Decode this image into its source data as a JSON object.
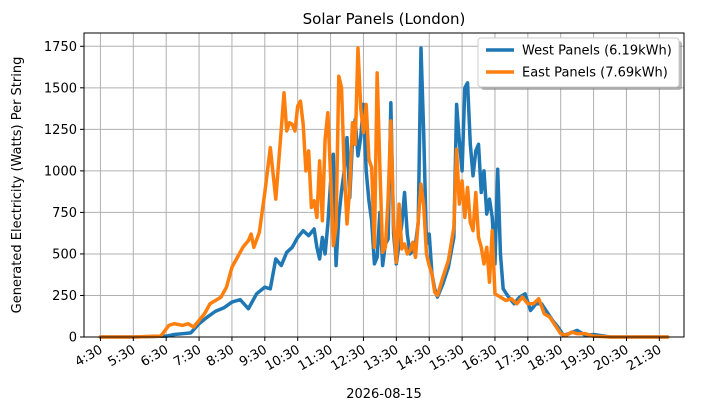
{
  "chart_data": {
    "type": "line",
    "title": "Solar Panels (London)",
    "xlabel": "2026-08-15",
    "ylabel": "Generated Electricity (Watts) Per String",
    "ylim": [
      0,
      1830
    ],
    "xlim": [
      "04:00",
      "22:15"
    ],
    "grid": true,
    "legend_position": "top-right",
    "x_ticks": [
      "4:30",
      "5:30",
      "6:30",
      "7:30",
      "8:30",
      "9:30",
      "10:30",
      "11:30",
      "12:30",
      "13:30",
      "14:30",
      "15:30",
      "16:30",
      "17:30",
      "18:30",
      "19:30",
      "20:30",
      "21:30"
    ],
    "y_ticks": [
      0,
      250,
      500,
      750,
      1000,
      1250,
      1500,
      1750
    ],
    "series": [
      {
        "name": "West Panels (6.19kWh)",
        "color": "#1f77b4",
        "points": [
          [
            "04:30",
            0
          ],
          [
            "05:30",
            0
          ],
          [
            "06:30",
            5
          ],
          [
            "06:45",
            15
          ],
          [
            "07:00",
            20
          ],
          [
            "07:15",
            25
          ],
          [
            "07:30",
            80
          ],
          [
            "07:45",
            120
          ],
          [
            "08:00",
            155
          ],
          [
            "08:15",
            175
          ],
          [
            "08:30",
            210
          ],
          [
            "08:45",
            225
          ],
          [
            "09:00",
            170
          ],
          [
            "09:15",
            260
          ],
          [
            "09:30",
            300
          ],
          [
            "09:40",
            290
          ],
          [
            "09:50",
            470
          ],
          [
            "10:00",
            430
          ],
          [
            "10:10",
            510
          ],
          [
            "10:20",
            540
          ],
          [
            "10:30",
            600
          ],
          [
            "10:40",
            640
          ],
          [
            "10:50",
            610
          ],
          [
            "11:00",
            650
          ],
          [
            "11:05",
            540
          ],
          [
            "11:10",
            470
          ],
          [
            "11:15",
            600
          ],
          [
            "11:20",
            500
          ],
          [
            "11:25",
            680
          ],
          [
            "11:30",
            930
          ],
          [
            "11:35",
            1100
          ],
          [
            "11:40",
            430
          ],
          [
            "11:45",
            720
          ],
          [
            "11:50",
            880
          ],
          [
            "11:55",
            1000
          ],
          [
            "12:00",
            1200
          ],
          [
            "12:05",
            840
          ],
          [
            "12:10",
            1180
          ],
          [
            "12:15",
            1310
          ],
          [
            "12:20",
            1090
          ],
          [
            "12:25",
            1200
          ],
          [
            "12:30",
            1400
          ],
          [
            "12:35",
            1000
          ],
          [
            "12:40",
            820
          ],
          [
            "12:45",
            700
          ],
          [
            "12:50",
            440
          ],
          [
            "12:55",
            480
          ],
          [
            "13:00",
            750
          ],
          [
            "13:05",
            430
          ],
          [
            "13:10",
            560
          ],
          [
            "13:15",
            590
          ],
          [
            "13:20",
            1410
          ],
          [
            "13:25",
            620
          ],
          [
            "13:30",
            440
          ],
          [
            "13:35",
            560
          ],
          [
            "13:40",
            680
          ],
          [
            "13:45",
            870
          ],
          [
            "13:50",
            620
          ],
          [
            "13:55",
            500
          ],
          [
            "14:00",
            520
          ],
          [
            "14:05",
            560
          ],
          [
            "14:10",
            690
          ],
          [
            "14:15",
            1740
          ],
          [
            "14:20",
            1220
          ],
          [
            "14:25",
            560
          ],
          [
            "14:30",
            620
          ],
          [
            "14:35",
            380
          ],
          [
            "14:40",
            290
          ],
          [
            "14:45",
            240
          ],
          [
            "14:55",
            320
          ],
          [
            "15:05",
            420
          ],
          [
            "15:15",
            600
          ],
          [
            "15:20",
            1400
          ],
          [
            "15:25",
            1180
          ],
          [
            "15:30",
            1000
          ],
          [
            "15:35",
            1500
          ],
          [
            "15:40",
            1530
          ],
          [
            "15:45",
            1160
          ],
          [
            "15:50",
            970
          ],
          [
            "15:55",
            1120
          ],
          [
            "16:00",
            1160
          ],
          [
            "16:05",
            870
          ],
          [
            "16:10",
            1000
          ],
          [
            "16:15",
            740
          ],
          [
            "16:20",
            830
          ],
          [
            "16:25",
            720
          ],
          [
            "16:30",
            440
          ],
          [
            "16:35",
            1010
          ],
          [
            "16:40",
            500
          ],
          [
            "16:45",
            290
          ],
          [
            "16:55",
            240
          ],
          [
            "17:05",
            200
          ],
          [
            "17:15",
            240
          ],
          [
            "17:25",
            260
          ],
          [
            "17:35",
            160
          ],
          [
            "17:45",
            200
          ],
          [
            "17:55",
            200
          ],
          [
            "18:05",
            150
          ],
          [
            "18:15",
            100
          ],
          [
            "18:25",
            60
          ],
          [
            "18:35",
            10
          ],
          [
            "18:45",
            20
          ],
          [
            "19:00",
            40
          ],
          [
            "19:15",
            10
          ],
          [
            "19:30",
            15
          ],
          [
            "20:00",
            0
          ],
          [
            "20:30",
            0
          ],
          [
            "21:00",
            0
          ],
          [
            "21:30",
            0
          ],
          [
            "21:45",
            0
          ]
        ]
      },
      {
        "name": "East Panels (7.69kWh)",
        "color": "#ff7f0e",
        "points": [
          [
            "04:30",
            0
          ],
          [
            "05:30",
            0
          ],
          [
            "06:20",
            5
          ],
          [
            "06:35",
            70
          ],
          [
            "06:45",
            80
          ],
          [
            "07:00",
            70
          ],
          [
            "07:10",
            80
          ],
          [
            "07:20",
            60
          ],
          [
            "07:30",
            100
          ],
          [
            "07:40",
            140
          ],
          [
            "07:50",
            200
          ],
          [
            "08:00",
            220
          ],
          [
            "08:10",
            240
          ],
          [
            "08:20",
            300
          ],
          [
            "08:30",
            420
          ],
          [
            "08:40",
            480
          ],
          [
            "08:50",
            540
          ],
          [
            "09:00",
            580
          ],
          [
            "09:05",
            620
          ],
          [
            "09:10",
            540
          ],
          [
            "09:20",
            630
          ],
          [
            "09:30",
            870
          ],
          [
            "09:40",
            1140
          ],
          [
            "09:50",
            830
          ],
          [
            "10:00",
            1250
          ],
          [
            "10:05",
            1470
          ],
          [
            "10:10",
            1240
          ],
          [
            "10:15",
            1290
          ],
          [
            "10:20",
            1280
          ],
          [
            "10:25",
            1240
          ],
          [
            "10:30",
            1390
          ],
          [
            "10:35",
            1420
          ],
          [
            "10:40",
            1280
          ],
          [
            "10:45",
            1000
          ],
          [
            "10:50",
            1120
          ],
          [
            "10:55",
            780
          ],
          [
            "11:00",
            820
          ],
          [
            "11:05",
            720
          ],
          [
            "11:10",
            1060
          ],
          [
            "11:15",
            700
          ],
          [
            "11:20",
            1190
          ],
          [
            "11:25",
            1350
          ],
          [
            "11:30",
            970
          ],
          [
            "11:35",
            550
          ],
          [
            "11:40",
            660
          ],
          [
            "11:45",
            1570
          ],
          [
            "11:50",
            1500
          ],
          [
            "11:55",
            1000
          ],
          [
            "12:00",
            680
          ],
          [
            "12:05",
            900
          ],
          [
            "12:10",
            1290
          ],
          [
            "12:15",
            1160
          ],
          [
            "12:20",
            1740
          ],
          [
            "12:25",
            1380
          ],
          [
            "12:30",
            1230
          ],
          [
            "12:35",
            1400
          ],
          [
            "12:40",
            1070
          ],
          [
            "12:45",
            1020
          ],
          [
            "12:50",
            540
          ],
          [
            "12:55",
            1590
          ],
          [
            "13:00",
            1020
          ],
          [
            "13:05",
            510
          ],
          [
            "13:10",
            540
          ],
          [
            "13:15",
            830
          ],
          [
            "13:20",
            1300
          ],
          [
            "13:25",
            690
          ],
          [
            "13:30",
            450
          ],
          [
            "13:35",
            800
          ],
          [
            "13:40",
            530
          ],
          [
            "13:45",
            560
          ],
          [
            "13:50",
            500
          ],
          [
            "13:55",
            520
          ],
          [
            "14:00",
            570
          ],
          [
            "14:05",
            480
          ],
          [
            "14:10",
            700
          ],
          [
            "14:15",
            920
          ],
          [
            "14:20",
            790
          ],
          [
            "14:25",
            500
          ],
          [
            "14:30",
            430
          ],
          [
            "14:35",
            380
          ],
          [
            "14:40",
            270
          ],
          [
            "14:45",
            250
          ],
          [
            "14:55",
            360
          ],
          [
            "15:05",
            460
          ],
          [
            "15:15",
            660
          ],
          [
            "15:20",
            1130
          ],
          [
            "15:25",
            800
          ],
          [
            "15:30",
            940
          ],
          [
            "15:35",
            720
          ],
          [
            "15:40",
            900
          ],
          [
            "15:45",
            690
          ],
          [
            "15:50",
            640
          ],
          [
            "15:55",
            870
          ],
          [
            "16:00",
            600
          ],
          [
            "16:05",
            540
          ],
          [
            "16:10",
            440
          ],
          [
            "16:15",
            540
          ],
          [
            "16:20",
            330
          ],
          [
            "16:25",
            640
          ],
          [
            "16:30",
            260
          ],
          [
            "16:40",
            240
          ],
          [
            "16:50",
            220
          ],
          [
            "17:00",
            230
          ],
          [
            "17:10",
            200
          ],
          [
            "17:20",
            240
          ],
          [
            "17:30",
            200
          ],
          [
            "17:40",
            200
          ],
          [
            "17:50",
            230
          ],
          [
            "18:00",
            140
          ],
          [
            "18:10",
            120
          ],
          [
            "18:20",
            70
          ],
          [
            "18:30",
            20
          ],
          [
            "18:40",
            10
          ],
          [
            "18:50",
            30
          ],
          [
            "19:00",
            20
          ],
          [
            "19:15",
            20
          ],
          [
            "19:30",
            5
          ],
          [
            "20:00",
            0
          ],
          [
            "21:00",
            0
          ],
          [
            "21:45",
            0
          ]
        ]
      }
    ]
  }
}
